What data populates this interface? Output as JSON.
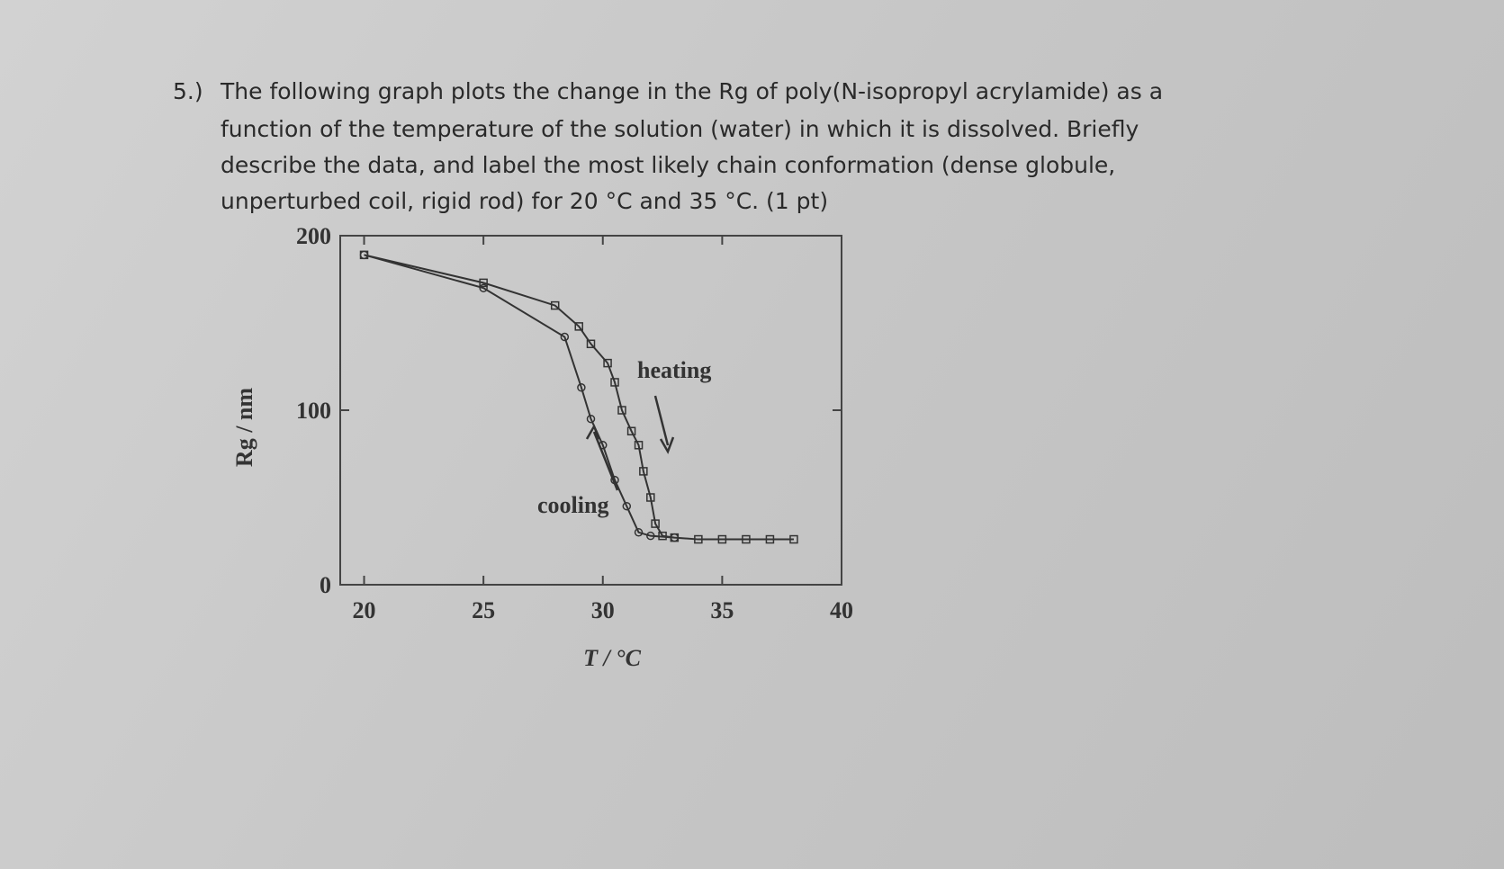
{
  "question": {
    "number": "5.)",
    "lines": [
      "The following graph plots the change in the Rg of poly(N-isopropyl acrylamide) as a",
      "function of the temperature of the solution (water) in which it is dissolved. Briefly",
      "describe the data, and label the most likely chain conformation (dense globule,",
      "unperturbed coil, rigid rod) for 20 °C and 35 °C. (1 pt)"
    ]
  },
  "chart_data": {
    "type": "line",
    "xlabel": "T / °C",
    "ylabel": "Rg / nm",
    "xlim": [
      19,
      40
    ],
    "xticks": [
      20,
      25,
      30,
      35,
      40
    ],
    "ylim": [
      0,
      200
    ],
    "yticks": [
      0,
      100,
      200
    ],
    "series": [
      {
        "name": "heating",
        "color": "#333333",
        "marker": "square",
        "x": [
          20,
          25,
          28,
          29,
          29.5,
          30.2,
          30.5,
          30.8,
          31.2,
          31.5,
          31.7,
          32,
          32.2,
          32.5,
          33,
          34,
          35,
          36,
          37,
          38
        ],
        "values": [
          189,
          173,
          160,
          148,
          138,
          127,
          116,
          100,
          88,
          80,
          65,
          50,
          35,
          28,
          27,
          26,
          26,
          26,
          26,
          26
        ]
      },
      {
        "name": "cooling",
        "color": "#333333",
        "marker": "circle",
        "x": [
          20,
          25,
          28.4,
          29.1,
          29.5,
          30,
          30.5,
          31,
          31.5,
          32,
          33
        ],
        "values": [
          189,
          170,
          142,
          113,
          95,
          80,
          60,
          45,
          30,
          28,
          27
        ]
      }
    ]
  }
}
